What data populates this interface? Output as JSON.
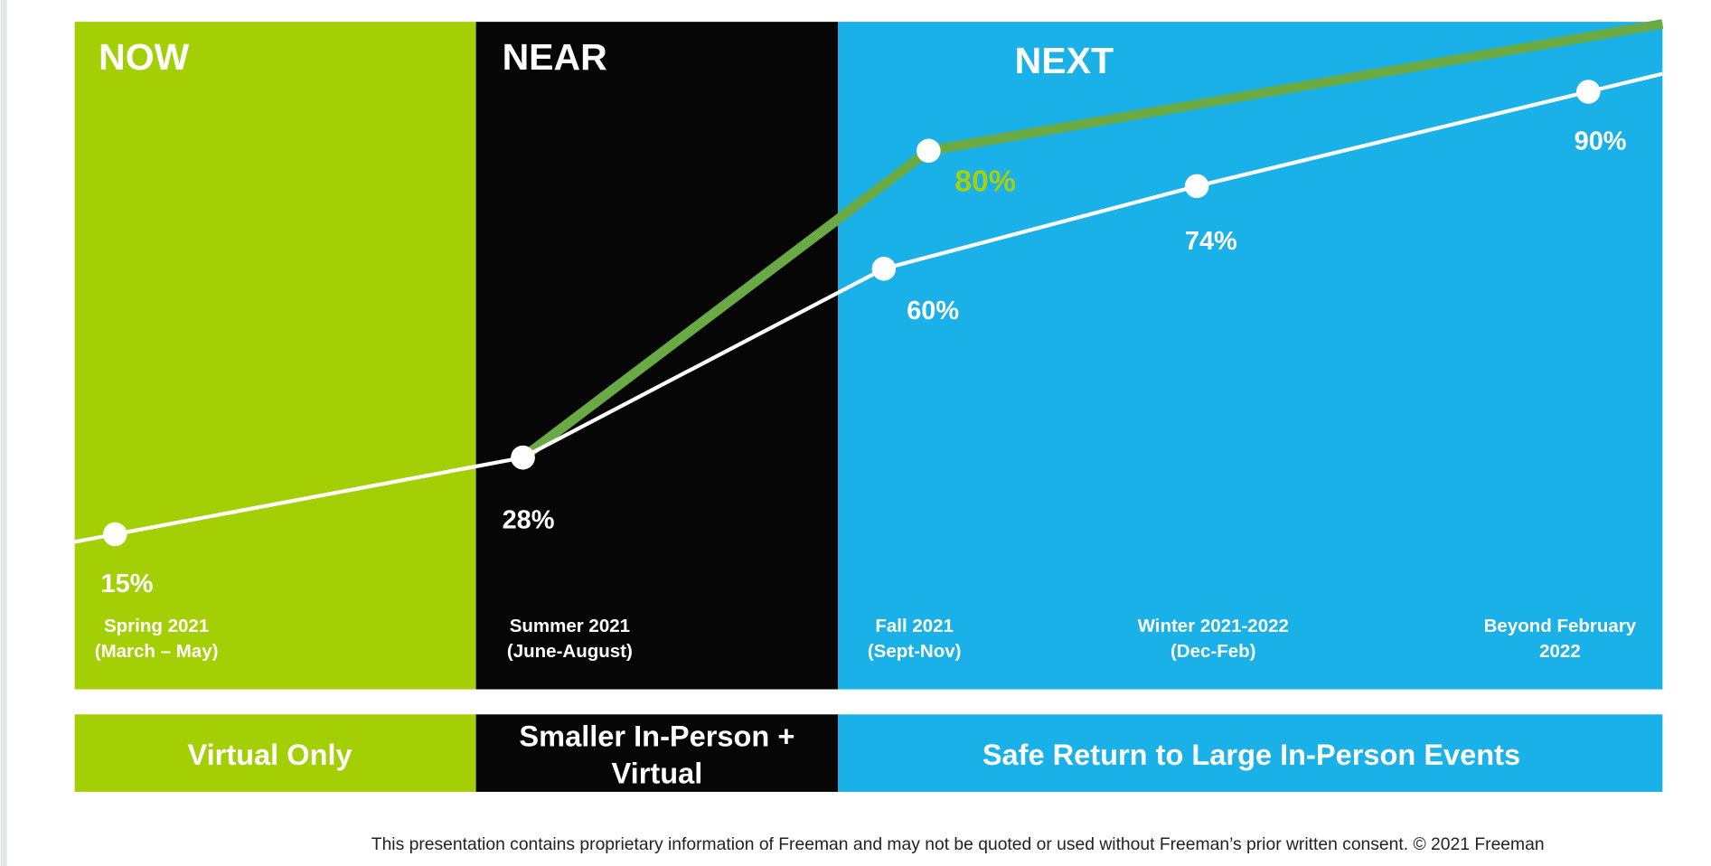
{
  "panels": [
    {
      "label": "NOW"
    },
    {
      "label": "NEAR"
    },
    {
      "label": "NEXT"
    }
  ],
  "chart_data": {
    "type": "line",
    "categories": [
      "Spring 2021\n(March – May)",
      "Summer 2021\n(June-August)",
      "Fall 2021\n(Sept-Nov)",
      "Winter 2021-2022\n(Dec-Feb)",
      "Beyond February\n2022"
    ],
    "ylim": [
      0,
      100
    ],
    "series": [
      {
        "color": "#ffffff",
        "values": [
          15,
          28,
          60,
          74,
          90
        ],
        "value_labels": [
          "15%",
          "28%",
          "60%",
          "74%",
          "90%"
        ]
      },
      {
        "color": "#6aaa45",
        "label_color": "#a6d10a",
        "values": [
          null,
          28,
          80,
          null,
          null
        ],
        "value_labels": [
          null,
          null,
          "80%",
          null,
          null
        ]
      }
    ]
  },
  "phases": [
    "Virtual Only",
    "Smaller In-Person +\nVirtual",
    "Safe Return to Large In-Person Events"
  ],
  "footer": "This presentation contains proprietary information of Freeman and may not be quoted or used without Freeman’s prior written consent. © 2021 Freeman"
}
